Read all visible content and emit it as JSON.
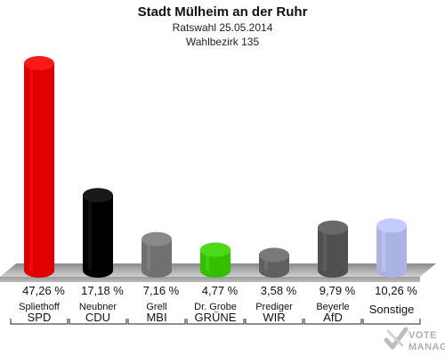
{
  "header": {
    "title": "Stadt Mülheim an der Ruhr",
    "subtitle": "Ratswahl 25.05.2014",
    "district": "Wahlbezirk 135"
  },
  "watermark": {
    "line1": "VOTE",
    "line2": "MANAGER"
  },
  "chart_data": {
    "type": "bar",
    "title": "Stadt Mülheim an der Ruhr",
    "subtitle": "Ratswahl 25.05.2014 · Wahlbezirk 135",
    "xlabel": "",
    "ylabel": "",
    "ylim": [
      0,
      50
    ],
    "grid": false,
    "unit": "%",
    "categories": [
      "SPD",
      "CDU",
      "MBI",
      "GRÜNE",
      "WIR",
      "AfD",
      "Sonstige"
    ],
    "candidates": [
      "Spliethoff",
      "Neubner",
      "Grell",
      "Dr. Grobe",
      "Prediger",
      "Beyerle",
      ""
    ],
    "values": [
      47.26,
      17.18,
      7.16,
      4.77,
      3.58,
      9.79,
      10.26
    ],
    "value_labels": [
      "47,26 %",
      "17,18 %",
      "7,16 %",
      "4,77 %",
      "3,58 %",
      "9,79 %",
      "10,26 %"
    ],
    "colors": [
      "#e00000",
      "#000000",
      "#707070",
      "#33c000",
      "#606060",
      "#505050",
      "#a9b4e4"
    ]
  }
}
